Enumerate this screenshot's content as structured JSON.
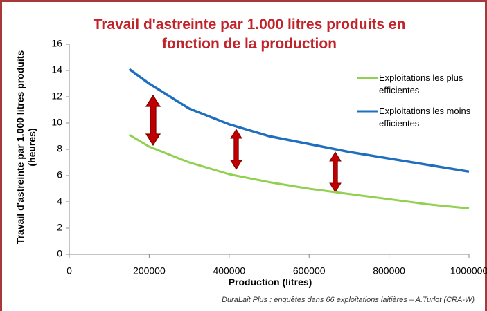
{
  "chart_data": {
    "type": "line",
    "title": "Travail d'astreinte par 1.000 litres produits en fonction de la production",
    "y_label": "Travail d'astreinte par 1.000 litres produits (heures)",
    "x_label": "Production (litres)",
    "source": "DuraLait Plus : enquêtes dans 66 exploitations laitières – A.Turlot (CRA-W)",
    "x": [
      150000,
      200000,
      300000,
      400000,
      500000,
      600000,
      700000,
      800000,
      900000,
      1000000
    ],
    "series": [
      {
        "name": "Exploitations les plus efficientes",
        "color": "#92d050",
        "values": [
          9.1,
          8.2,
          7.0,
          6.1,
          5.5,
          5.0,
          4.6,
          4.2,
          3.8,
          3.5
        ]
      },
      {
        "name": "Exploitations les moins efficientes",
        "color": "#1f6fbf",
        "values": [
          14.1,
          13.0,
          11.1,
          9.9,
          9.0,
          8.4,
          7.8,
          7.3,
          6.8,
          6.3
        ]
      }
    ],
    "xlim": [
      0,
      1000000
    ],
    "xticks": [
      0,
      200000,
      400000,
      600000,
      800000,
      1000000
    ],
    "ylim": [
      0,
      16
    ],
    "yticks": [
      0,
      2,
      4,
      6,
      8,
      10,
      12,
      14,
      16
    ],
    "legend": "right",
    "grid": false
  }
}
